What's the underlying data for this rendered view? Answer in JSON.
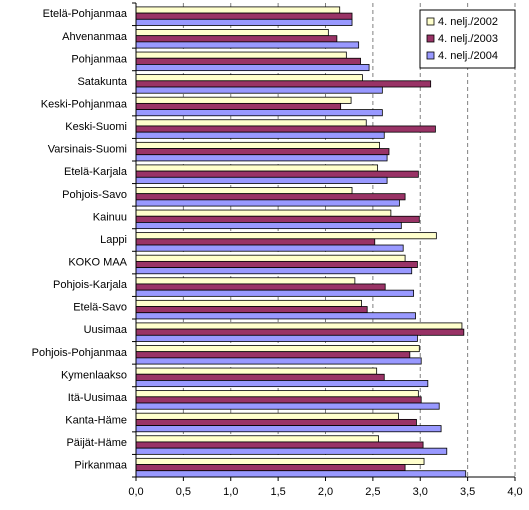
{
  "chart_data": {
    "type": "bar",
    "orientation": "horizontal",
    "categories": [
      "Etelä-Pohjanmaa",
      "Ahvenanmaa",
      "Pohjanmaa",
      "Satakunta",
      "Keski-Pohjanmaa",
      "Keski-Suomi",
      "Varsinais-Suomi",
      "Etelä-Karjala",
      "Pohjois-Savo",
      "Kainuu",
      "Lappi",
      "KOKO MAA",
      "Pohjois-Karjala",
      "Etelä-Savo",
      "Uusimaa",
      "Pohjois-Pohjanmaa",
      "Kymenlaakso",
      "Itä-Uusimaa",
      "Kanta-Häme",
      "Päijät-Häme",
      "Pirkanmaa"
    ],
    "series": [
      {
        "name": "4. nelj./2002",
        "color": "#ffffcc",
        "values": [
          2.15,
          2.03,
          2.22,
          2.39,
          2.27,
          2.43,
          2.57,
          2.55,
          2.28,
          2.69,
          3.17,
          2.84,
          2.31,
          2.38,
          3.44,
          2.99,
          2.54,
          2.98,
          2.77,
          2.56,
          3.04
        ]
      },
      {
        "name": "4. nelj./2003",
        "color": "#993366",
        "values": [
          2.28,
          2.12,
          2.37,
          3.11,
          2.16,
          3.16,
          2.67,
          2.98,
          2.84,
          2.99,
          2.52,
          2.97,
          2.63,
          2.44,
          3.46,
          2.89,
          2.62,
          3.01,
          2.96,
          3.03,
          2.84
        ]
      },
      {
        "name": "4. nelj./2004",
        "color": "#9999ff",
        "values": [
          2.28,
          2.35,
          2.46,
          2.6,
          2.6,
          2.62,
          2.65,
          2.65,
          2.78,
          2.8,
          2.82,
          2.91,
          2.93,
          2.95,
          2.97,
          3.01,
          3.08,
          3.2,
          3.22,
          3.28,
          3.48
        ]
      }
    ],
    "xlim": [
      0,
      4
    ],
    "xticks": [
      "0,0",
      "0,5",
      "1,0",
      "1,5",
      "2,0",
      "2,5",
      "3,0",
      "3,5",
      "4,0"
    ],
    "grid": "vertical dashed",
    "legend_position": "top-right"
  }
}
